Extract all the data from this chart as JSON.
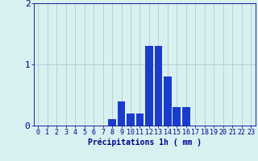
{
  "categories": [
    0,
    1,
    2,
    3,
    4,
    5,
    6,
    7,
    8,
    9,
    10,
    11,
    12,
    13,
    14,
    15,
    16,
    17,
    18,
    19,
    20,
    21,
    22,
    23
  ],
  "values": [
    0,
    0,
    0,
    0,
    0,
    0,
    0,
    0,
    0.1,
    0.4,
    0.2,
    0.2,
    1.3,
    1.3,
    0.8,
    0.3,
    0.3,
    0,
    0,
    0,
    0,
    0,
    0,
    0
  ],
  "bar_color": "#1a3ccc",
  "background_color": "#d8f0f0",
  "grid_color": "#b8cfd8",
  "tick_color": "#00008b",
  "label_color": "#00008b",
  "xlabel": "Précipitations 1h ( mm )",
  "ylim": [
    0,
    2
  ],
  "yticks": [
    0,
    1,
    2
  ],
  "xlim": [
    -0.5,
    23.5
  ],
  "xlabel_fontsize": 7,
  "tick_fontsize": 6
}
